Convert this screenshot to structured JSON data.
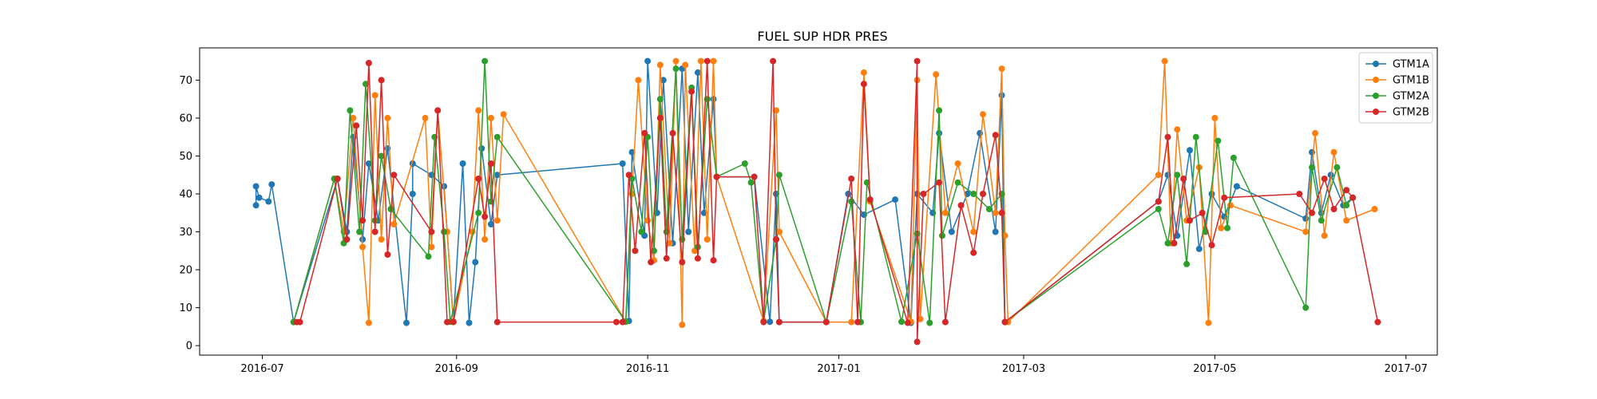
{
  "chart_data": {
    "type": "line",
    "title": "FUEL SUP HDR PRES",
    "xlabel": "",
    "ylabel": "",
    "ylim": [
      -2.5,
      78.5
    ],
    "xlim": [
      "2016-06-11",
      "2017-07-11"
    ],
    "x_ticks": [
      {
        "date": "2016-07-01",
        "label": "2016-07"
      },
      {
        "date": "2016-09-01",
        "label": "2016-09"
      },
      {
        "date": "2016-11-01",
        "label": "2016-11"
      },
      {
        "date": "2017-01-01",
        "label": "2017-01"
      },
      {
        "date": "2017-03-01",
        "label": "2017-03"
      },
      {
        "date": "2017-05-01",
        "label": "2017-05"
      },
      {
        "date": "2017-07-01",
        "label": "2017-07"
      }
    ],
    "y_ticks": [
      0,
      10,
      20,
      30,
      40,
      50,
      60,
      70
    ],
    "legend_position": "top-right",
    "grid": false,
    "series": [
      {
        "name": "GTM1A",
        "color": "#1f77b4",
        "points": [
          [
            "2016-06-29",
            37
          ],
          [
            "2016-06-29",
            42
          ],
          [
            "2016-06-30",
            39
          ],
          [
            "2016-07-03",
            38
          ],
          [
            "2016-07-04",
            42.5
          ],
          [
            "2016-07-11",
            6.2
          ],
          [
            "2016-07-25",
            44
          ],
          [
            "2016-07-28",
            30
          ],
          [
            "2016-07-30",
            55
          ],
          [
            "2016-08-02",
            28
          ],
          [
            "2016-08-04",
            48
          ],
          [
            "2016-08-07",
            33
          ],
          [
            "2016-08-10",
            52
          ],
          [
            "2016-08-16",
            6
          ],
          [
            "2016-08-18",
            40
          ],
          [
            "2016-08-18",
            48
          ],
          [
            "2016-08-24",
            45
          ],
          [
            "2016-08-28",
            42
          ],
          [
            "2016-08-31",
            6.2
          ],
          [
            "2016-09-03",
            48
          ],
          [
            "2016-09-05",
            6
          ],
          [
            "2016-09-07",
            22
          ],
          [
            "2016-09-09",
            52
          ],
          [
            "2016-09-12",
            32
          ],
          [
            "2016-09-14",
            45
          ],
          [
            "2016-10-24",
            48
          ],
          [
            "2016-10-26",
            6.5
          ],
          [
            "2016-10-27",
            51
          ],
          [
            "2016-10-31",
            29
          ],
          [
            "2016-11-01",
            75
          ],
          [
            "2016-11-04",
            35
          ],
          [
            "2016-11-06",
            70
          ],
          [
            "2016-11-09",
            27
          ],
          [
            "2016-11-12",
            73
          ],
          [
            "2016-11-14",
            30
          ],
          [
            "2016-11-17",
            72
          ],
          [
            "2016-11-19",
            35
          ],
          [
            "2016-11-22",
            65
          ],
          [
            "2016-11-23",
            44.5
          ],
          [
            "2016-12-05",
            44.5
          ],
          [
            "2016-12-10",
            6.3
          ],
          [
            "2016-12-12",
            40
          ],
          [
            "2016-12-13",
            6.2
          ],
          [
            "2016-12-28",
            6.2
          ],
          [
            "2017-01-04",
            40
          ],
          [
            "2017-01-09",
            34.5
          ],
          [
            "2017-01-19",
            38.5
          ],
          [
            "2017-01-24",
            6
          ],
          [
            "2017-01-26",
            40
          ],
          [
            "2017-01-31",
            35
          ],
          [
            "2017-02-02",
            56
          ],
          [
            "2017-02-06",
            30
          ],
          [
            "2017-02-11",
            40
          ],
          [
            "2017-02-15",
            56
          ],
          [
            "2017-02-20",
            30
          ],
          [
            "2017-02-22",
            66
          ],
          [
            "2017-02-23",
            6.2
          ],
          [
            "2017-04-13",
            38
          ],
          [
            "2017-04-16",
            45
          ],
          [
            "2017-04-19",
            29
          ],
          [
            "2017-04-23",
            51.5
          ],
          [
            "2017-04-26",
            25.5
          ],
          [
            "2017-04-30",
            40
          ],
          [
            "2017-05-04",
            34
          ],
          [
            "2017-05-08",
            42
          ],
          [
            "2017-05-30",
            33.5
          ],
          [
            "2017-06-01",
            51
          ],
          [
            "2017-06-04",
            35
          ],
          [
            "2017-06-07",
            45
          ],
          [
            "2017-06-11",
            37
          ],
          [
            "2017-06-14",
            39
          ]
        ]
      },
      {
        "name": "GTM1B",
        "color": "#ff7f0e",
        "points": [
          [
            "2016-07-11",
            6.2
          ],
          [
            "2016-07-24",
            44
          ],
          [
            "2016-07-27",
            30
          ],
          [
            "2016-07-30",
            60
          ],
          [
            "2016-08-02",
            26
          ],
          [
            "2016-08-04",
            6
          ],
          [
            "2016-08-06",
            66
          ],
          [
            "2016-08-08",
            28
          ],
          [
            "2016-08-10",
            60
          ],
          [
            "2016-08-12",
            32
          ],
          [
            "2016-08-22",
            60
          ],
          [
            "2016-08-24",
            26
          ],
          [
            "2016-08-26",
            62
          ],
          [
            "2016-08-29",
            30
          ],
          [
            "2016-08-31",
            6.2
          ],
          [
            "2016-09-06",
            30
          ],
          [
            "2016-09-08",
            62
          ],
          [
            "2016-09-10",
            28
          ],
          [
            "2016-09-12",
            60
          ],
          [
            "2016-09-14",
            33
          ],
          [
            "2016-09-16",
            61
          ],
          [
            "2016-10-25",
            6.3
          ],
          [
            "2016-10-27",
            40
          ],
          [
            "2016-10-29",
            70
          ],
          [
            "2016-11-01",
            33
          ],
          [
            "2016-11-03",
            22.5
          ],
          [
            "2016-11-05",
            74
          ],
          [
            "2016-11-08",
            27
          ],
          [
            "2016-11-10",
            75
          ],
          [
            "2016-11-12",
            5.5
          ],
          [
            "2016-11-13",
            74
          ],
          [
            "2016-11-16",
            25
          ],
          [
            "2016-11-18",
            75
          ],
          [
            "2016-11-20",
            28
          ],
          [
            "2016-11-22",
            75
          ],
          [
            "2016-11-23",
            44.5
          ],
          [
            "2016-12-08",
            6.5
          ],
          [
            "2016-12-12",
            62
          ],
          [
            "2016-12-13",
            30
          ],
          [
            "2016-12-28",
            6.2
          ],
          [
            "2017-01-05",
            6.2
          ],
          [
            "2017-01-09",
            72
          ],
          [
            "2017-01-11",
            38
          ],
          [
            "2017-01-24",
            6.3
          ],
          [
            "2017-01-26",
            70
          ],
          [
            "2017-01-27",
            7
          ],
          [
            "2017-02-01",
            71.5
          ],
          [
            "2017-02-04",
            35
          ],
          [
            "2017-02-08",
            48
          ],
          [
            "2017-02-13",
            30
          ],
          [
            "2017-02-16",
            61
          ],
          [
            "2017-02-20",
            35
          ],
          [
            "2017-02-22",
            73
          ],
          [
            "2017-02-23",
            29
          ],
          [
            "2017-02-24",
            6.2
          ],
          [
            "2017-04-13",
            45
          ],
          [
            "2017-04-15",
            75
          ],
          [
            "2017-04-17",
            27
          ],
          [
            "2017-04-19",
            57
          ],
          [
            "2017-04-22",
            33
          ],
          [
            "2017-04-26",
            47
          ],
          [
            "2017-04-29",
            6
          ],
          [
            "2017-05-01",
            60
          ],
          [
            "2017-05-03",
            31
          ],
          [
            "2017-05-06",
            37
          ],
          [
            "2017-05-30",
            30
          ],
          [
            "2017-06-02",
            56
          ],
          [
            "2017-06-05",
            29
          ],
          [
            "2017-06-08",
            51
          ],
          [
            "2017-06-12",
            33
          ],
          [
            "2017-06-21",
            36
          ]
        ]
      },
      {
        "name": "GTM2A",
        "color": "#2ca02c",
        "points": [
          [
            "2016-07-11",
            6.2
          ],
          [
            "2016-07-24",
            44
          ],
          [
            "2016-07-27",
            27
          ],
          [
            "2016-07-29",
            62
          ],
          [
            "2016-08-01",
            30
          ],
          [
            "2016-08-03",
            69
          ],
          [
            "2016-08-06",
            33
          ],
          [
            "2016-08-08",
            50
          ],
          [
            "2016-08-11",
            36
          ],
          [
            "2016-08-23",
            23.5
          ],
          [
            "2016-08-25",
            55
          ],
          [
            "2016-08-28",
            30
          ],
          [
            "2016-08-30",
            6.3
          ],
          [
            "2016-09-08",
            35
          ],
          [
            "2016-09-10",
            75
          ],
          [
            "2016-09-12",
            38
          ],
          [
            "2016-09-14",
            55
          ],
          [
            "2016-10-25",
            6.3
          ],
          [
            "2016-10-27",
            44
          ],
          [
            "2016-10-30",
            30
          ],
          [
            "2016-11-01",
            55
          ],
          [
            "2016-11-03",
            25
          ],
          [
            "2016-11-05",
            65
          ],
          [
            "2016-11-07",
            30
          ],
          [
            "2016-11-10",
            73
          ],
          [
            "2016-11-12",
            28
          ],
          [
            "2016-11-15",
            68
          ],
          [
            "2016-11-17",
            26
          ],
          [
            "2016-11-20",
            65
          ],
          [
            "2016-11-23",
            44.5
          ],
          [
            "2016-12-02",
            48
          ],
          [
            "2016-12-04",
            43
          ],
          [
            "2016-12-08",
            6.3
          ],
          [
            "2016-12-12",
            28
          ],
          [
            "2016-12-13",
            45
          ],
          [
            "2016-12-28",
            6.2
          ],
          [
            "2017-01-05",
            38
          ],
          [
            "2017-01-08",
            6.2
          ],
          [
            "2017-01-10",
            43
          ],
          [
            "2017-01-21",
            6.3
          ],
          [
            "2017-01-26",
            29.5
          ],
          [
            "2017-01-30",
            6
          ],
          [
            "2017-02-02",
            62
          ],
          [
            "2017-02-03",
            29
          ],
          [
            "2017-02-08",
            43
          ],
          [
            "2017-02-13",
            40
          ],
          [
            "2017-02-18",
            36
          ],
          [
            "2017-02-22",
            40
          ],
          [
            "2017-02-23",
            6.2
          ],
          [
            "2017-04-13",
            36
          ],
          [
            "2017-04-16",
            27
          ],
          [
            "2017-04-19",
            45
          ],
          [
            "2017-04-22",
            21.5
          ],
          [
            "2017-04-25",
            55
          ],
          [
            "2017-04-28",
            30
          ],
          [
            "2017-05-02",
            54
          ],
          [
            "2017-05-05",
            31
          ],
          [
            "2017-05-07",
            49.5
          ],
          [
            "2017-05-30",
            10
          ],
          [
            "2017-06-01",
            47
          ],
          [
            "2017-06-04",
            33
          ],
          [
            "2017-06-09",
            47
          ],
          [
            "2017-06-12",
            37
          ],
          [
            "2017-06-14",
            39
          ]
        ]
      },
      {
        "name": "GTM2B",
        "color": "#d62728",
        "points": [
          [
            "2016-07-12",
            6.2
          ],
          [
            "2016-07-13",
            6.2
          ],
          [
            "2016-07-25",
            44
          ],
          [
            "2016-07-28",
            28
          ],
          [
            "2016-07-31",
            58
          ],
          [
            "2016-08-02",
            33
          ],
          [
            "2016-08-04",
            74.5
          ],
          [
            "2016-08-06",
            30
          ],
          [
            "2016-08-08",
            70
          ],
          [
            "2016-08-10",
            24
          ],
          [
            "2016-08-12",
            45
          ],
          [
            "2016-08-24",
            30
          ],
          [
            "2016-08-26",
            62
          ],
          [
            "2016-08-29",
            6.2
          ],
          [
            "2016-08-31",
            6.3
          ],
          [
            "2016-09-08",
            44
          ],
          [
            "2016-09-10",
            34
          ],
          [
            "2016-09-12",
            48
          ],
          [
            "2016-09-14",
            6.2
          ],
          [
            "2016-10-22",
            6.2
          ],
          [
            "2016-10-24",
            6.2
          ],
          [
            "2016-10-26",
            45
          ],
          [
            "2016-10-28",
            25
          ],
          [
            "2016-10-31",
            56
          ],
          [
            "2016-11-02",
            22
          ],
          [
            "2016-11-05",
            60
          ],
          [
            "2016-11-07",
            23
          ],
          [
            "2016-11-09",
            56
          ],
          [
            "2016-11-12",
            22
          ],
          [
            "2016-11-15",
            67
          ],
          [
            "2016-11-17",
            23
          ],
          [
            "2016-11-20",
            75
          ],
          [
            "2016-11-22",
            22.5
          ],
          [
            "2016-11-23",
            44.5
          ],
          [
            "2016-12-05",
            44.5
          ],
          [
            "2016-12-08",
            6.2
          ],
          [
            "2016-12-11",
            75
          ],
          [
            "2016-12-12",
            28
          ],
          [
            "2016-12-13",
            6.2
          ],
          [
            "2016-12-28",
            6.2
          ],
          [
            "2017-01-05",
            44
          ],
          [
            "2017-01-07",
            6.2
          ],
          [
            "2017-01-09",
            69
          ],
          [
            "2017-01-11",
            38.5
          ],
          [
            "2017-01-23",
            6
          ],
          [
            "2017-01-26",
            75
          ],
          [
            "2017-01-26",
            1
          ],
          [
            "2017-01-28",
            40
          ],
          [
            "2017-02-02",
            43
          ],
          [
            "2017-02-04",
            6.2
          ],
          [
            "2017-02-09",
            37
          ],
          [
            "2017-02-13",
            24.5
          ],
          [
            "2017-02-16",
            40
          ],
          [
            "2017-02-20",
            55.5
          ],
          [
            "2017-02-22",
            35
          ],
          [
            "2017-02-23",
            6.2
          ],
          [
            "2017-04-13",
            38
          ],
          [
            "2017-04-16",
            55
          ],
          [
            "2017-04-18",
            27
          ],
          [
            "2017-04-21",
            44
          ],
          [
            "2017-04-23",
            33
          ],
          [
            "2017-04-27",
            35
          ],
          [
            "2017-04-30",
            26.5
          ],
          [
            "2017-05-04",
            39
          ],
          [
            "2017-05-28",
            40
          ],
          [
            "2017-06-01",
            35
          ],
          [
            "2017-06-05",
            44
          ],
          [
            "2017-06-08",
            36
          ],
          [
            "2017-06-12",
            41
          ],
          [
            "2017-06-14",
            39
          ],
          [
            "2017-06-22",
            6.2
          ]
        ]
      }
    ]
  }
}
